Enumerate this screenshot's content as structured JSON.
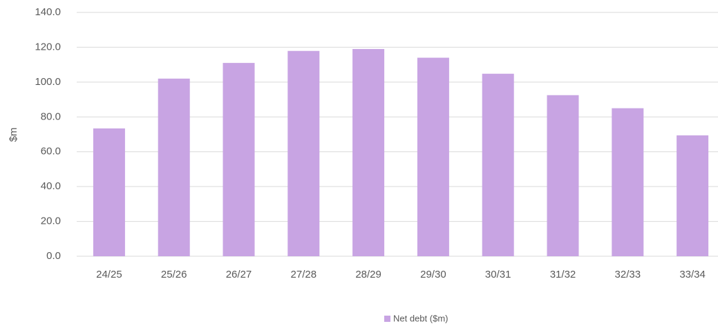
{
  "chart_data": {
    "type": "bar",
    "y_label": "$m",
    "categories": [
      "24/25",
      "25/26",
      "26/27",
      "27/28",
      "28/29",
      "29/30",
      "30/31",
      "31/32",
      "32/33",
      "33/34"
    ],
    "series": [
      {
        "name": "Net debt ($m)",
        "color": "#c8a4e3",
        "values": [
          73.4,
          102,
          111,
          117.9,
          119,
          114,
          104.8,
          92.5,
          85,
          69.4
        ]
      }
    ],
    "ylim": [
      0,
      140
    ],
    "yticks": [
      {
        "value": 0,
        "label": "0.0"
      },
      {
        "value": 20,
        "label": "20.0"
      },
      {
        "value": 40,
        "label": "40.0"
      },
      {
        "value": 60,
        "label": "60.0"
      },
      {
        "value": 80,
        "label": "80.0"
      },
      {
        "value": 100,
        "label": "100.0"
      },
      {
        "value": 120,
        "label": "120.0"
      },
      {
        "value": 140,
        "label": "140.0"
      }
    ],
    "grid": true,
    "legend": "bottom"
  }
}
